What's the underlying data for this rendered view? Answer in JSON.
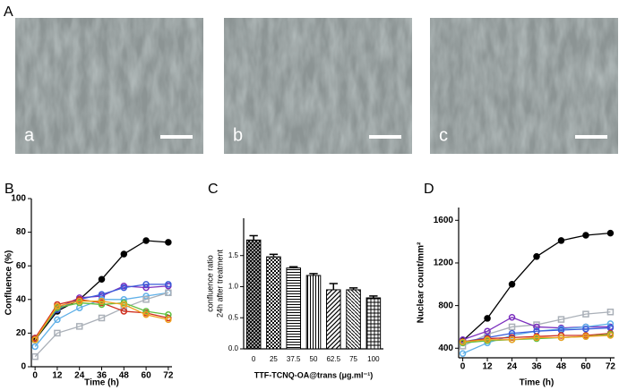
{
  "figure_label": "A",
  "images": [
    {
      "label": "a"
    },
    {
      "label": "b"
    },
    {
      "label": "c"
    }
  ],
  "chart_data": [
    {
      "type": "line",
      "panel_label": "B",
      "y_label": "Confluence (%)",
      "x_label": "Time (h)",
      "x": [
        0,
        12,
        24,
        36,
        48,
        60,
        72
      ],
      "xlim": [
        -2,
        74
      ],
      "xticks": [
        0,
        12,
        24,
        36,
        48,
        60,
        72
      ],
      "ylim": [
        0,
        100
      ],
      "yticks": [
        0,
        20,
        40,
        60,
        80,
        100
      ],
      "series": [
        {
          "color": "#000000",
          "values": [
            16,
            33,
            40,
            52,
            67,
            75,
            74
          ]
        },
        {
          "color": "#7b2fbe",
          "values": [
            17,
            35,
            41,
            42,
            48,
            47,
            48
          ]
        },
        {
          "color": "#3a5bd9",
          "values": [
            17,
            34,
            40,
            43,
            47,
            49,
            49
          ]
        },
        {
          "color": "#5fb0e8",
          "values": [
            12,
            28,
            35,
            40,
            40,
            42,
            44
          ]
        },
        {
          "color": "#aab0b8",
          "marker": "square",
          "values": [
            6,
            20,
            24,
            29,
            35,
            40,
            44
          ]
        },
        {
          "color": "#d03020",
          "values": [
            17,
            37,
            40,
            38,
            33,
            32,
            29
          ]
        },
        {
          "color": "#60c040",
          "values": [
            16,
            35,
            38,
            37,
            38,
            33,
            31
          ]
        },
        {
          "color": "#f0a020",
          "values": [
            16,
            36,
            39,
            39,
            37,
            31,
            28
          ]
        }
      ]
    },
    {
      "type": "bar",
      "panel_label": "C",
      "y_label": [
        "confluence ratio",
        "24h after treatment"
      ],
      "x_label": "TTF-TCNQ-OA@trans (μg.ml⁻¹)",
      "categories": [
        "0",
        "25",
        "37.5",
        "50",
        "62.5",
        "75",
        "100"
      ],
      "values": [
        1.75,
        1.48,
        1.3,
        1.18,
        0.95,
        0.95,
        0.82
      ],
      "errors": [
        0.07,
        0.04,
        0.02,
        0.03,
        0.1,
        0.03,
        0.03
      ],
      "color": "#ffffff",
      "ylim": [
        0,
        2.1
      ],
      "yticks": [
        {
          "value": 0,
          "label": "0.0"
        },
        0.5,
        {
          "value": 1,
          "label": "1.0"
        },
        1.5
      ]
    },
    {
      "type": "line",
      "panel_label": "D",
      "y_label": "Nuclear count/mm²",
      "x_label": "Time (h)",
      "x": [
        0,
        12,
        24,
        36,
        48,
        60,
        72
      ],
      "xlim": [
        -2,
        74
      ],
      "xticks": [
        0,
        12,
        24,
        36,
        48,
        60,
        72
      ],
      "ylim": [
        310,
        1720
      ],
      "yticks": [
        400,
        800,
        1200,
        1600
      ],
      "series": [
        {
          "color": "#000000",
          "values": [
            470,
            680,
            1000,
            1260,
            1410,
            1460,
            1480
          ]
        },
        {
          "color": "#aab0b8",
          "marker": "square",
          "values": [
            420,
            530,
            600,
            620,
            670,
            720,
            740
          ]
        },
        {
          "color": "#7b2fbe",
          "values": [
            480,
            560,
            690,
            600,
            590,
            600,
            600
          ]
        },
        {
          "color": "#5fb0e8",
          "values": [
            350,
            450,
            520,
            560,
            580,
            600,
            630
          ]
        },
        {
          "color": "#3a5bd9",
          "values": [
            460,
            500,
            540,
            560,
            570,
            580,
            590
          ]
        },
        {
          "color": "#d03020",
          "values": [
            460,
            490,
            500,
            510,
            520,
            520,
            540
          ]
        },
        {
          "color": "#60c040",
          "values": [
            450,
            470,
            480,
            490,
            500,
            510,
            530
          ]
        },
        {
          "color": "#f0a020",
          "values": [
            460,
            480,
            480,
            500,
            500,
            510,
            520
          ]
        }
      ]
    }
  ]
}
